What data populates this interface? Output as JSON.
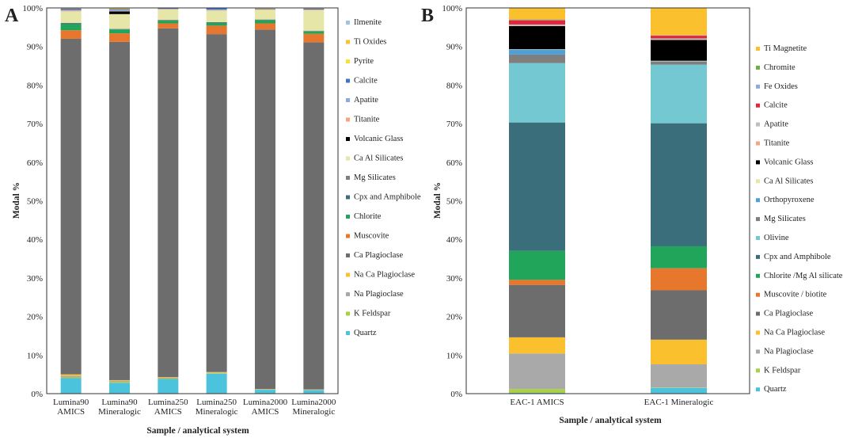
{
  "chart_data": [
    {
      "panel": "A",
      "type": "bar",
      "stacked": true,
      "xlabel": "Sample / analytical system",
      "ylabel": "Modal %",
      "ylim": [
        0,
        100
      ],
      "yticks": [
        "0%",
        "10%",
        "20%",
        "30%",
        "40%",
        "50%",
        "60%",
        "70%",
        "80%",
        "90%",
        "100%"
      ],
      "categories": [
        [
          "Lumina90",
          "AMICS"
        ],
        [
          "Lumina90",
          "Mineralogic"
        ],
        [
          "Lumina250",
          "AMICS"
        ],
        [
          "Lumina250",
          "Mineralogic"
        ],
        [
          "Lumina2000",
          "AMICS"
        ],
        [
          "Lumina2000",
          "Mineralogic"
        ]
      ],
      "series": [
        {
          "name": "Quartz",
          "color": "#4bc3dc",
          "values": [
            4.0,
            2.8,
            3.8,
            5.2,
            1.0,
            0.9
          ]
        },
        {
          "name": "K Feldspar",
          "color": "#a9d046",
          "values": [
            0.2,
            0.2,
            0.1,
            0.1,
            0.0,
            0.0
          ]
        },
        {
          "name": "Na Plagioclase",
          "color": "#a9a9a9",
          "values": [
            0.4,
            0.3,
            0.2,
            0.1,
            0.1,
            0.1
          ]
        },
        {
          "name": "Na Ca Plagioclase",
          "color": "#fbc02d",
          "values": [
            0.4,
            0.2,
            0.2,
            0.2,
            0.1,
            0.1
          ]
        },
        {
          "name": "Ca Plagioclase",
          "color": "#6d6d6d",
          "values": [
            87.0,
            87.7,
            90.4,
            87.6,
            93.2,
            90.0
          ]
        },
        {
          "name": "Muscovite",
          "color": "#e8772e",
          "values": [
            2.2,
            2.2,
            1.3,
            2.2,
            1.6,
            2.2
          ]
        },
        {
          "name": "Chlorite",
          "color": "#21a55a",
          "values": [
            1.6,
            1.0,
            0.7,
            0.7,
            0.8,
            0.6
          ]
        },
        {
          "name": "Cpx and Amphibole",
          "color": "#3b6e7b",
          "values": [
            0.2,
            0.1,
            0.1,
            0.1,
            0.1,
            0.1
          ]
        },
        {
          "name": "Mg Silicates",
          "color": "#7f7f7f",
          "values": [
            0.1,
            0.1,
            0.1,
            0.1,
            0.1,
            0.1
          ]
        },
        {
          "name": "Ca Al Silicates",
          "color": "#e6e6a8",
          "values": [
            3.0,
            3.8,
            2.7,
            3.0,
            2.5,
            5.3
          ]
        },
        {
          "name": "Volcanic Glass",
          "color": "#000000",
          "values": [
            0.0,
            0.7,
            0.0,
            0.0,
            0.0,
            0.0
          ]
        },
        {
          "name": "Titanite",
          "color": "#f4a582",
          "values": [
            0.2,
            0.1,
            0.1,
            0.1,
            0.1,
            0.1
          ]
        },
        {
          "name": "Apatite",
          "color": "#8ea9db",
          "values": [
            0.2,
            0.3,
            0.1,
            0.2,
            0.1,
            0.1
          ]
        },
        {
          "name": "Calcite",
          "color": "#4472c4",
          "values": [
            0.3,
            0.2,
            0.1,
            0.3,
            0.1,
            0.2
          ]
        },
        {
          "name": "Pyrite",
          "color": "#f5e531",
          "values": [
            0.0,
            0.1,
            0.0,
            0.0,
            0.0,
            0.0
          ]
        },
        {
          "name": "Ti Oxides",
          "color": "#fbc02d",
          "values": [
            0.1,
            0.1,
            0.1,
            0.1,
            0.1,
            0.1
          ]
        },
        {
          "name": "Ilmenite",
          "color": "#9dc3e6",
          "values": [
            0.1,
            0.1,
            0.0,
            0.0,
            0.1,
            0.1
          ]
        }
      ]
    },
    {
      "panel": "B",
      "type": "bar",
      "stacked": true,
      "xlabel": "Sample / analytical system",
      "ylabel": "Modal %",
      "ylim": [
        0,
        100
      ],
      "yticks": [
        "0%",
        "10%",
        "20%",
        "30%",
        "40%",
        "50%",
        "60%",
        "70%",
        "80%",
        "90%",
        "100%"
      ],
      "categories": [
        [
          "EAC-1 AMICS"
        ],
        [
          "EAC-1 Mineralogic"
        ]
      ],
      "series": [
        {
          "name": "Quartz",
          "color": "#4bc3dc",
          "values": [
            0.2,
            1.5
          ]
        },
        {
          "name": "K Feldspar",
          "color": "#a9d046",
          "values": [
            1.0,
            0.1
          ]
        },
        {
          "name": "Na Plagioclase",
          "color": "#a9a9a9",
          "values": [
            9.2,
            6.0
          ]
        },
        {
          "name": "Na Ca Plagioclase",
          "color": "#fbc02d",
          "values": [
            4.2,
            6.4
          ]
        },
        {
          "name": "Ca Plagioclase",
          "color": "#6d6d6d",
          "values": [
            13.6,
            12.8
          ]
        },
        {
          "name": "Muscovite / biotite",
          "color": "#e8772e",
          "values": [
            1.3,
            5.7
          ]
        },
        {
          "name": "Chlorite /Mg Al silicates",
          "color": "#21a55a",
          "values": [
            7.5,
            5.7
          ]
        },
        {
          "name": "Cpx and Amphibole",
          "color": "#3b6e7b",
          "values": [
            33.3,
            31.9
          ]
        },
        {
          "name": "Olivine",
          "color": "#74c8d2",
          "values": [
            15.4,
            15.2
          ]
        },
        {
          "name": "Mg Silicates",
          "color": "#7f7f7f",
          "values": [
            2.2,
            0.8
          ]
        },
        {
          "name": "Orthopyroxene",
          "color": "#4f9fd9",
          "values": [
            1.3,
            0.1
          ]
        },
        {
          "name": "Ca Al Silicates",
          "color": "#e6e6a8",
          "values": [
            0.1,
            0.1
          ]
        },
        {
          "name": "Volcanic Glass",
          "color": "#000000",
          "values": [
            6.0,
            5.4
          ]
        },
        {
          "name": "Titanite",
          "color": "#f4a582",
          "values": [
            0.1,
            0.1
          ]
        },
        {
          "name": "Apatite",
          "color": "#bfbfbf",
          "values": [
            0.3,
            0.3
          ]
        },
        {
          "name": "Calcite",
          "color": "#e2263c",
          "values": [
            1.1,
            0.7
          ]
        },
        {
          "name": "Fe Oxides",
          "color": "#8ea9db",
          "values": [
            0.1,
            0.1
          ]
        },
        {
          "name": "Chromite",
          "color": "#70ad47",
          "values": [
            0.1,
            0.0
          ]
        },
        {
          "name": "Ti Magnetite",
          "color": "#fbc02d",
          "values": [
            3.0,
            7.1
          ]
        }
      ]
    }
  ]
}
